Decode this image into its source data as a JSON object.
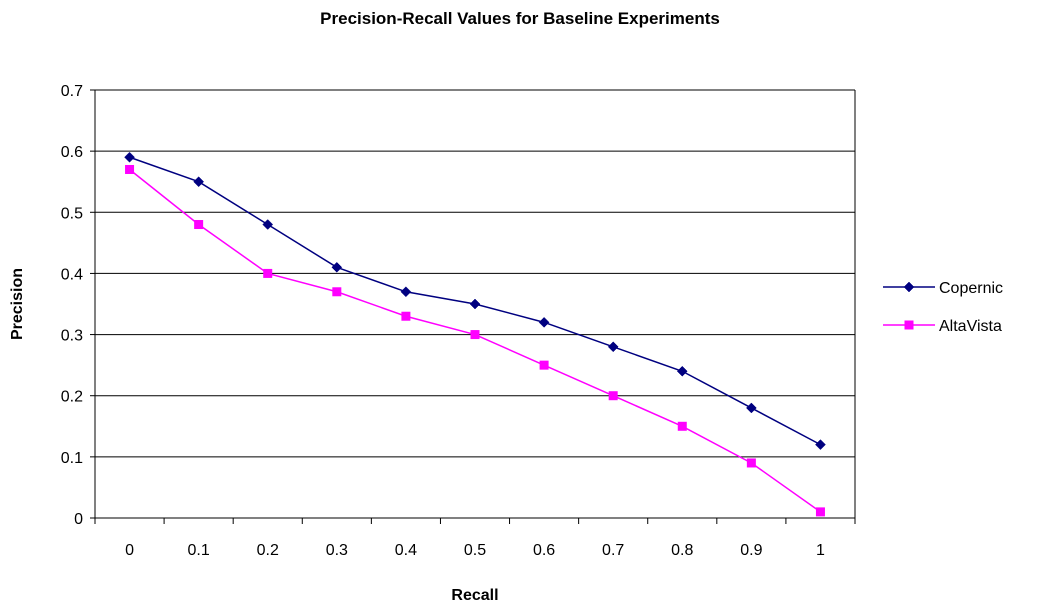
{
  "chart_data": {
    "type": "line",
    "title": "Precision-Recall Values for Baseline Experiments",
    "xlabel": "Recall",
    "ylabel": "Precision",
    "categories": [
      "0",
      "0.1",
      "0.2",
      "0.3",
      "0.4",
      "0.5",
      "0.6",
      "0.7",
      "0.8",
      "0.9",
      "1"
    ],
    "y_ticks": [
      "0",
      "0.1",
      "0.2",
      "0.3",
      "0.4",
      "0.5",
      "0.6",
      "0.7"
    ],
    "ylim": [
      0,
      0.7
    ],
    "grid": true,
    "legend_position": "right",
    "series": [
      {
        "name": "Copernic",
        "color": "#000080",
        "marker": "diamond",
        "values": [
          0.59,
          0.55,
          0.48,
          0.41,
          0.37,
          0.35,
          0.32,
          0.28,
          0.24,
          0.18,
          0.12
        ]
      },
      {
        "name": "AltaVista",
        "color": "#FF00FF",
        "marker": "square",
        "values": [
          0.57,
          0.48,
          0.4,
          0.37,
          0.33,
          0.3,
          0.25,
          0.2,
          0.15,
          0.09,
          0.01
        ]
      }
    ]
  }
}
